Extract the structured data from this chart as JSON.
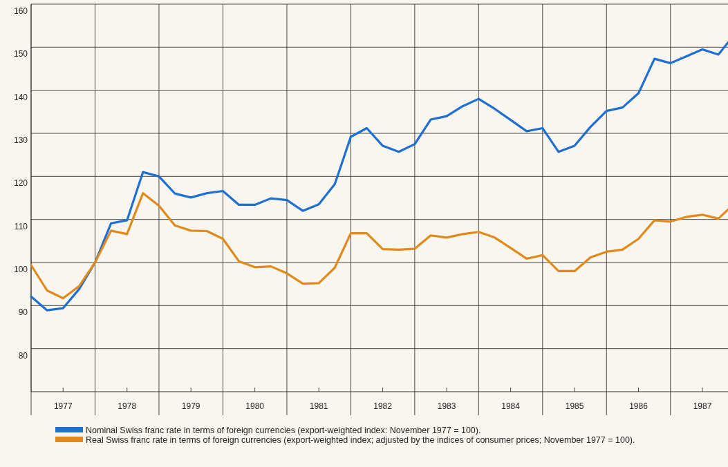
{
  "chart_data": {
    "type": "line",
    "x": [
      1977,
      1977.25,
      1977.5,
      1977.75,
      1978,
      1978.25,
      1978.5,
      1978.75,
      1979,
      1979.25,
      1979.5,
      1979.75,
      1980,
      1980.25,
      1980.5,
      1980.75,
      1981,
      1981.25,
      1981.5,
      1981.75,
      1982,
      1982.25,
      1982.5,
      1982.75,
      1983,
      1983.25,
      1983.5,
      1983.75,
      1984,
      1984.25,
      1984.5,
      1984.75,
      1985,
      1985.25,
      1985.5,
      1985.75,
      1986,
      1986.25,
      1986.5,
      1986.75,
      1987,
      1987.25,
      1987.5,
      1987.75,
      1987.9
    ],
    "series": [
      {
        "name": "Nominal Swiss franc rate in terms of foreign currencies (export-weighted index: November 1977 = 100).",
        "color": "#1f6fd1",
        "values": [
          92.1,
          88.9,
          89.4,
          93.8,
          100,
          109.1,
          109.8,
          121,
          120,
          116,
          115.1,
          116.1,
          116.6,
          113.4,
          113.4,
          114.9,
          114.5,
          112,
          113.5,
          118.2,
          129.2,
          131.2,
          127.1,
          125.7,
          127.5,
          133.2,
          134,
          136.3,
          138,
          135.7,
          133.1,
          130.5,
          131.2,
          125.7,
          127.1,
          131.5,
          135.2,
          136,
          139.3,
          147.3,
          146.3,
          147.9,
          149.5,
          148.3,
          151.1
        ]
      },
      {
        "name": "Real Swiss franc rate in terms of foreign currencies (export-weighted index; adjusted by the indices of consumer prices; November 1977 = 100).",
        "color": "#e08a1c",
        "values": [
          99.4,
          93.5,
          91.7,
          94.5,
          100,
          107.4,
          106.6,
          116.1,
          113.2,
          108.6,
          107.4,
          107.3,
          105.5,
          100.3,
          98.9,
          99.1,
          97.5,
          95.1,
          95.2,
          98.8,
          106.8,
          106.8,
          103.1,
          103,
          103.2,
          106.3,
          105.8,
          106.6,
          107.1,
          105.8,
          103.4,
          100.9,
          101.7,
          98,
          98,
          101.2,
          102.5,
          103,
          105.5,
          109.8,
          109.5,
          110.6,
          111.1,
          110.2,
          112.3
        ]
      }
    ],
    "xlim": [
      1977,
      1987.9
    ],
    "xticks": [
      {
        "value": 1977,
        "label": null
      },
      {
        "value": 1977.5,
        "label": "1977"
      },
      {
        "value": 1978,
        "label": null
      },
      {
        "value": 1978.5,
        "label": "1978"
      },
      {
        "value": 1979,
        "label": null
      },
      {
        "value": 1979.5,
        "label": "1979"
      },
      {
        "value": 1980,
        "label": null
      },
      {
        "value": 1980.5,
        "label": "1980"
      },
      {
        "value": 1981,
        "label": null
      },
      {
        "value": 1981.5,
        "label": "1981"
      },
      {
        "value": 1982,
        "label": null
      },
      {
        "value": 1982.5,
        "label": "1982"
      },
      {
        "value": 1983,
        "label": null
      },
      {
        "value": 1983.5,
        "label": "1983"
      },
      {
        "value": 1984,
        "label": null
      },
      {
        "value": 1984.5,
        "label": "1984"
      },
      {
        "value": 1985,
        "label": null
      },
      {
        "value": 1985.5,
        "label": "1985"
      },
      {
        "value": 1986,
        "label": null
      },
      {
        "value": 1986.5,
        "label": "1986"
      },
      {
        "value": 1987,
        "label": null
      },
      {
        "value": 1987.5,
        "label": "1987"
      }
    ],
    "ylim": [
      70,
      160
    ],
    "yticks": [
      80,
      90,
      100,
      110,
      120,
      130,
      140,
      150,
      160
    ],
    "grid": true,
    "legend": "bottom",
    "marker": "none",
    "line_style": "solid"
  }
}
